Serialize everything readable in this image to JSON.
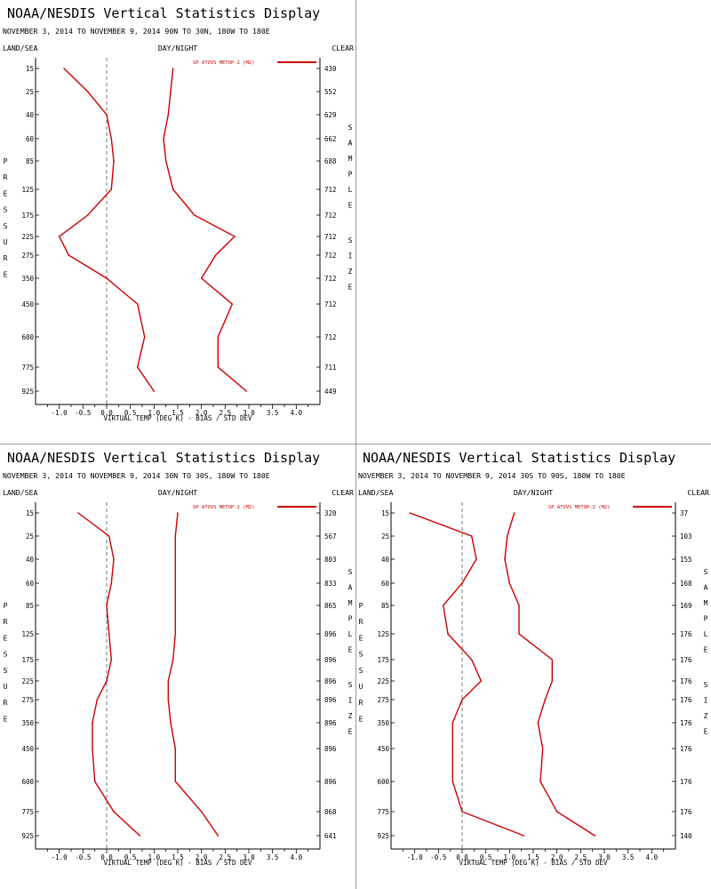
{
  "colors": {
    "series": "#cc0000",
    "zero_line": "#555555",
    "axes": "#000000",
    "divider": "#999999"
  },
  "common": {
    "title": "NOAA/NESDIS Vertical Statistics Display",
    "left_header": "LAND/SEA",
    "center_header": "DAY/NIGHT",
    "right_header": "CLEAR",
    "left_axis_label": "PRESSURE",
    "right_axis_label": "SAMPLE SIZE",
    "xlabel": "VIRTUAL TEMP (DEG K) - BIAS / STD DEV",
    "legend": "SP ATOVS METOP-2 (M2)",
    "xticks": [
      "-1.0",
      "-0.5",
      "0.0",
      "0.5",
      "1.0",
      "1.5",
      "2.0",
      "2.5",
      "3.0",
      "3.5",
      "4.0"
    ]
  },
  "chart_data": [
    {
      "panel_id": "north",
      "type": "line",
      "subtitle": "NOVEMBER 3, 2014 TO NOVEMBER 9, 2014  90N TO 30N, 180W TO 180E",
      "xlim": [
        -1.5,
        4.5
      ],
      "y_scale": "pressure-levels (categorical, nonuniform)",
      "levels": [
        15,
        25,
        40,
        60,
        85,
        125,
        175,
        225,
        275,
        350,
        450,
        600,
        775,
        925
      ],
      "sample_size": [
        "430",
        "552",
        "629",
        "662",
        "688",
        "712",
        "712",
        "712",
        "712",
        "712",
        "712",
        "712",
        "711",
        "449"
      ],
      "series": [
        {
          "name": "Bias",
          "values": [
            -0.9,
            -0.4,
            0.0,
            0.1,
            0.15,
            0.1,
            -0.4,
            -1.0,
            -0.8,
            0.0,
            0.65,
            0.8,
            0.65,
            1.0
          ]
        },
        {
          "name": "Std Dev",
          "values": [
            1.4,
            1.35,
            1.3,
            1.2,
            1.25,
            1.4,
            1.85,
            2.7,
            2.3,
            2.0,
            2.65,
            2.35,
            2.35,
            2.95
          ]
        }
      ]
    },
    {
      "panel_id": "tropics",
      "type": "line",
      "subtitle": "NOVEMBER 3, 2014 TO NOVEMBER 9, 2014  30N TO 30S, 180W TO 180E",
      "xlim": [
        -1.5,
        4.5
      ],
      "y_scale": "pressure-levels (categorical, nonuniform)",
      "levels": [
        15,
        25,
        40,
        60,
        85,
        125,
        175,
        225,
        275,
        350,
        450,
        600,
        775,
        925
      ],
      "sample_size": [
        "320",
        "567",
        "803",
        "833",
        "865",
        "896",
        "896",
        "896",
        "896",
        "896",
        "896",
        "896",
        "868",
        "641"
      ],
      "series": [
        {
          "name": "Bias",
          "values": [
            -0.6,
            0.05,
            0.15,
            0.1,
            0.0,
            0.05,
            0.1,
            0.0,
            -0.2,
            -0.3,
            -0.3,
            -0.25,
            0.15,
            0.7
          ]
        },
        {
          "name": "Std Dev",
          "values": [
            1.5,
            1.45,
            1.45,
            1.45,
            1.45,
            1.45,
            1.4,
            1.3,
            1.3,
            1.35,
            1.45,
            1.45,
            2.0,
            2.35
          ]
        }
      ]
    },
    {
      "panel_id": "south",
      "type": "line",
      "subtitle": "NOVEMBER 3, 2014 TO NOVEMBER 9, 2014  30S TO 90S, 180W TO 180E",
      "xlim": [
        -1.5,
        4.5
      ],
      "y_scale": "pressure-levels (categorical, nonuniform)",
      "levels": [
        15,
        25,
        40,
        60,
        85,
        125,
        175,
        225,
        275,
        350,
        450,
        600,
        775,
        925
      ],
      "sample_size": [
        "37",
        "103",
        "155",
        "168",
        "169",
        "176",
        "176",
        "176",
        "176",
        "176",
        "176",
        "176",
        "176",
        "140"
      ],
      "series": [
        {
          "name": "Bias",
          "values": [
            -1.1,
            0.2,
            0.3,
            0.0,
            -0.4,
            -0.3,
            0.2,
            0.4,
            0.0,
            -0.2,
            -0.2,
            -0.2,
            0.0,
            1.3
          ]
        },
        {
          "name": "Std Dev",
          "values": [
            1.1,
            0.95,
            0.9,
            1.0,
            1.2,
            1.2,
            1.9,
            1.9,
            1.75,
            1.6,
            1.7,
            1.65,
            2.0,
            2.8
          ]
        }
      ]
    }
  ]
}
